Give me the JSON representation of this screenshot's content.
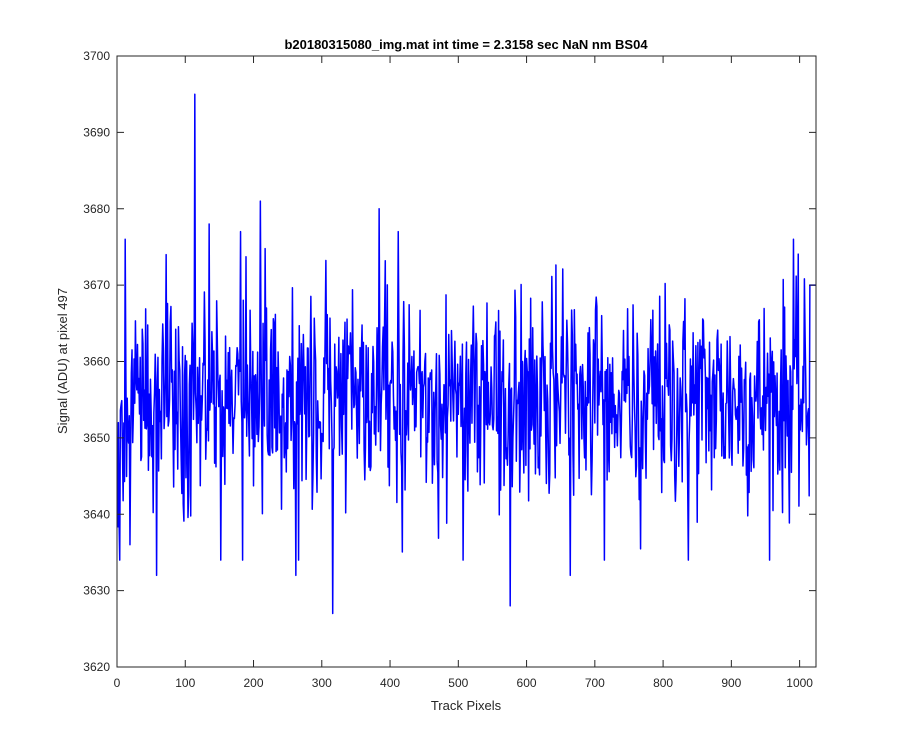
{
  "chart_data": {
    "type": "line",
    "title": "b20180315080_img.mat int time = 2.3158 sec  NaN nm BS04",
    "xlabel": "Track Pixels",
    "ylabel": "Signal (ADU) at pixel 497",
    "xlim": [
      0,
      1024
    ],
    "ylim": [
      3620,
      3700
    ],
    "xticks": [
      0,
      100,
      200,
      300,
      400,
      500,
      600,
      700,
      800,
      900,
      1000
    ],
    "yticks": [
      3620,
      3630,
      3640,
      3650,
      3660,
      3670,
      3680,
      3690,
      3700
    ],
    "grid": false,
    "legend": "none",
    "series": [
      {
        "color": "#0000ff",
        "x_start": 1,
        "x_step": 1,
        "approx_mean": 3655,
        "approx_noise_std": 7,
        "approx_min": 3627,
        "approx_max": 3695,
        "final_values": [
          3670,
          3670,
          3670,
          3670,
          3670,
          3670,
          3670,
          3670,
          3670,
          3670
        ],
        "notable_points": [
          {
            "x": 12,
            "y": 3676
          },
          {
            "x": 19,
            "y": 3636
          },
          {
            "x": 58,
            "y": 3632
          },
          {
            "x": 72,
            "y": 3674
          },
          {
            "x": 114,
            "y": 3695
          },
          {
            "x": 135,
            "y": 3678
          },
          {
            "x": 152,
            "y": 3634
          },
          {
            "x": 181,
            "y": 3677
          },
          {
            "x": 210,
            "y": 3681
          },
          {
            "x": 262,
            "y": 3632
          },
          {
            "x": 316,
            "y": 3627
          },
          {
            "x": 384,
            "y": 3680
          },
          {
            "x": 412,
            "y": 3677
          },
          {
            "x": 576,
            "y": 3628
          },
          {
            "x": 664,
            "y": 3632
          },
          {
            "x": 837,
            "y": 3634
          },
          {
            "x": 991,
            "y": 3676
          }
        ]
      }
    ]
  }
}
